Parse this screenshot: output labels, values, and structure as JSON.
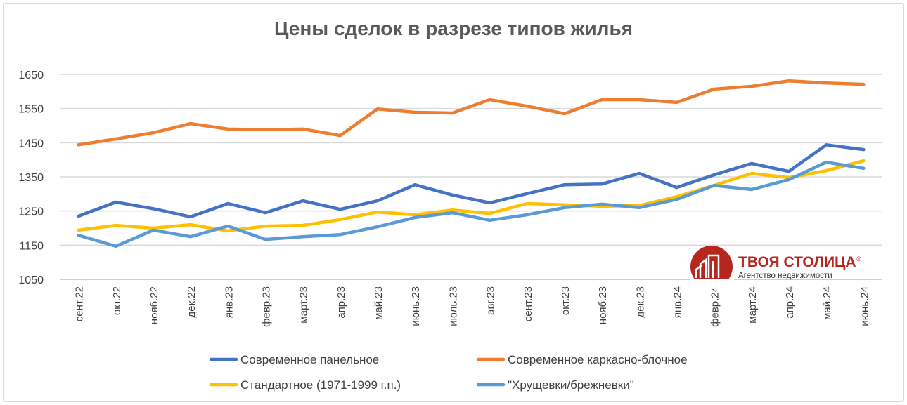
{
  "chart_data": {
    "type": "line",
    "title": "Цены сделок в разрезе типов жилья",
    "xlabel": "",
    "ylabel": "",
    "ylim": [
      1050,
      1650
    ],
    "yticks": [
      1050,
      1150,
      1250,
      1350,
      1450,
      1550,
      1650
    ],
    "grid": true,
    "legend_position": "bottom",
    "categories": [
      "сент.22",
      "окт.22",
      "нояб.22",
      "дек.22",
      "янв.23",
      "февр.23",
      "март.23",
      "апр.23",
      "май.23",
      "июнь.23",
      "июль.23",
      "авг.23",
      "сент.23",
      "окт.23",
      "нояб.23",
      "дек.23",
      "янв.24",
      "февр.24",
      "март.24",
      "апр.24",
      "май.24",
      "июнь.24"
    ],
    "series": [
      {
        "name": "Современное панельное",
        "color": "#4472C4",
        "values": [
          1235,
          1276,
          1257,
          1233,
          1272,
          1245,
          1280,
          1255,
          1280,
          1327,
          1297,
          1274,
          1301,
          1327,
          1329,
          1360,
          1319,
          1356,
          1389,
          1366,
          1444,
          1430
        ]
      },
      {
        "name": "Современное каркасно-блочное",
        "color": "#ED7D31",
        "values": [
          1444,
          1461,
          1479,
          1506,
          1490,
          1488,
          1490,
          1471,
          1549,
          1539,
          1537,
          1576,
          1557,
          1535,
          1576,
          1576,
          1568,
          1607,
          1615,
          1631,
          1625,
          1621
        ]
      },
      {
        "name": "Стандартное (1971-1999 г.п.)",
        "color": "#FFC000",
        "values": [
          1194,
          1208,
          1200,
          1210,
          1192,
          1206,
          1208,
          1225,
          1247,
          1239,
          1253,
          1243,
          1272,
          1268,
          1264,
          1266,
          1292,
          1325,
          1360,
          1348,
          1368,
          1397
        ]
      },
      {
        "name": "\"Хрущевки/брежневки\"",
        "color": "#5B9BD5",
        "values": [
          1179,
          1147,
          1194,
          1175,
          1206,
          1167,
          1175,
          1181,
          1204,
          1231,
          1245,
          1223,
          1239,
          1260,
          1270,
          1260,
          1284,
          1325,
          1313,
          1342,
          1393,
          1375
        ]
      }
    ]
  },
  "logo": {
    "name": "ТВОЯ СТОЛИЦА",
    "registered": "®",
    "tagline": "Агентство недвижимости",
    "color": "#B5261E"
  }
}
